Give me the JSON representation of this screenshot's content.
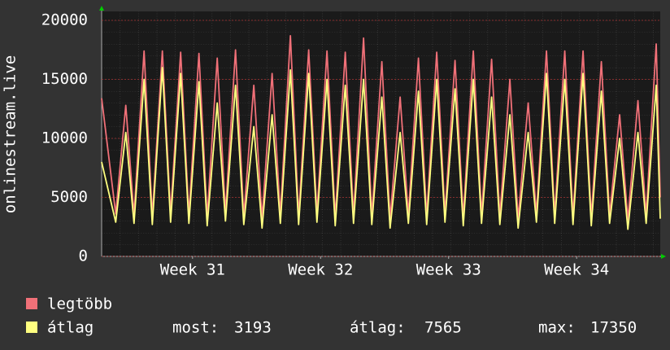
{
  "chart_data": {
    "type": "line",
    "y_label": "onlinestream.live",
    "ylim": [
      0,
      20000
    ],
    "yticks": [
      0,
      5000,
      10000,
      15000,
      20000
    ],
    "xlim": [
      -1.47,
      29.07
    ],
    "xticks": [
      {
        "value": 3.5,
        "label": "Week 31"
      },
      {
        "value": 10.5,
        "label": "Week 32"
      },
      {
        "value": 17.5,
        "label": "Week 33"
      },
      {
        "value": 24.5,
        "label": "Week 34"
      }
    ],
    "grid": true,
    "x": [
      -1.47,
      -0.7,
      -0.15,
      0.3,
      0.85,
      1.3,
      1.85,
      2.3,
      2.85,
      3.3,
      3.85,
      4.3,
      4.85,
      5.3,
      5.85,
      6.3,
      6.85,
      7.3,
      7.85,
      8.3,
      8.85,
      9.3,
      9.85,
      10.3,
      10.85,
      11.3,
      11.85,
      12.3,
      12.85,
      13.3,
      13.85,
      14.3,
      14.85,
      15.3,
      15.85,
      16.3,
      16.85,
      17.3,
      17.85,
      18.3,
      18.85,
      19.3,
      19.85,
      20.3,
      20.85,
      21.3,
      21.85,
      22.3,
      22.85,
      23.3,
      23.85,
      24.3,
      24.85,
      25.3,
      25.85,
      26.3,
      26.85,
      27.3,
      27.85,
      28.3,
      28.85,
      29.07
    ],
    "series": [
      {
        "name": "legtöbb",
        "color": "#f07078",
        "values": [
          13400,
          3600,
          12800,
          3500,
          17400,
          3400,
          17400,
          3600,
          17300,
          3500,
          17200,
          3300,
          16800,
          3700,
          17500,
          3400,
          14500,
          3200,
          15500,
          3500,
          18700,
          3400,
          17500,
          3600,
          17400,
          3300,
          17300,
          3500,
          18500,
          3400,
          16500,
          3200,
          13500,
          3500,
          16800,
          3400,
          17300,
          3600,
          16600,
          3300,
          17400,
          3500,
          16700,
          3400,
          15000,
          3200,
          13000,
          3600,
          17400,
          3500,
          17400,
          3400,
          17400,
          3300,
          16500,
          3500,
          12000,
          3100,
          13200,
          3500,
          18000,
          5000
        ]
      },
      {
        "name": "átlag",
        "color": "#ffff80",
        "values": [
          8000,
          2900,
          10500,
          2800,
          15000,
          2700,
          16000,
          2900,
          15500,
          2800,
          14800,
          2600,
          13000,
          3000,
          14500,
          2700,
          11000,
          2400,
          12000,
          2800,
          15800,
          2700,
          15500,
          2900,
          15000,
          2600,
          14500,
          2800,
          15000,
          2700,
          13500,
          2400,
          10500,
          2800,
          14000,
          2700,
          15000,
          2900,
          14200,
          2600,
          15000,
          2800,
          13500,
          2700,
          12000,
          2400,
          10500,
          2900,
          15500,
          2800,
          15000,
          2700,
          15500,
          2600,
          14000,
          2800,
          10000,
          2300,
          10500,
          2800,
          14500,
          3193
        ]
      }
    ],
    "stats": [
      {
        "label": "most:",
        "value": 3193
      },
      {
        "label": "átlag:",
        "value": 7565
      },
      {
        "label": "max:",
        "value": 17350
      }
    ]
  }
}
